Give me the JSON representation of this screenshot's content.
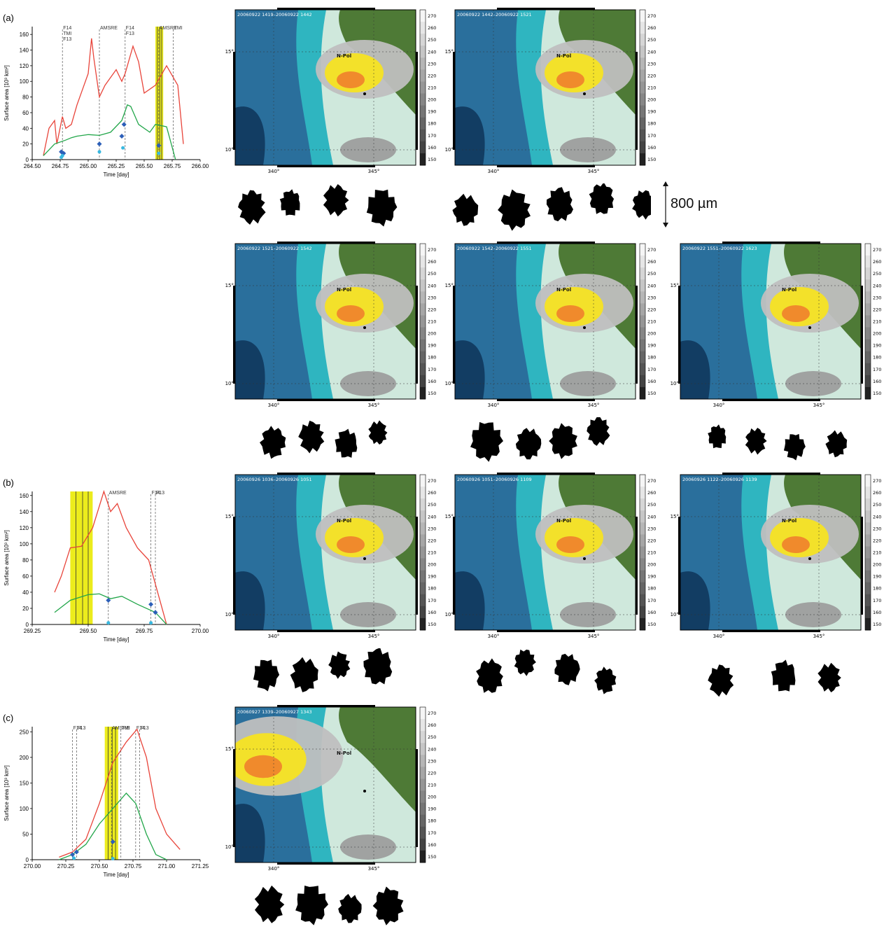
{
  "charts": [
    {
      "letter": "(a)",
      "ylabel": "Surface area [10³ km²]",
      "xlabel": "Time [day]",
      "xticks": [
        "264.50",
        "264.75",
        "265.00",
        "265.25",
        "265.50",
        "265.75",
        "266.00"
      ],
      "yticks": [
        "0",
        "20",
        "40",
        "60",
        "80",
        "100",
        "120",
        "140",
        "160"
      ],
      "xlim": [
        264.5,
        266.0
      ],
      "ylim": [
        0,
        170
      ],
      "highlight": [
        265.6,
        265.67
      ],
      "overpasses": [
        {
          "x": 264.77,
          "labels": [
            "F14",
            "TMI",
            "F13"
          ]
        },
        {
          "x": 265.1,
          "labels": [
            "AMSRE"
          ]
        },
        {
          "x": 265.33,
          "labels": [
            "F14",
            "F13"
          ]
        },
        {
          "x": 265.63,
          "labels": [
            "AMSRE"
          ]
        },
        {
          "x": 265.76,
          "labels": [
            "TMI"
          ]
        }
      ],
      "red": [
        [
          264.6,
          5
        ],
        [
          264.65,
          40
        ],
        [
          264.7,
          50
        ],
        [
          264.72,
          20
        ],
        [
          264.77,
          55
        ],
        [
          264.8,
          40
        ],
        [
          264.85,
          45
        ],
        [
          264.9,
          70
        ],
        [
          264.95,
          90
        ],
        [
          265.0,
          110
        ],
        [
          265.03,
          155
        ],
        [
          265.05,
          130
        ],
        [
          265.1,
          80
        ],
        [
          265.15,
          95
        ],
        [
          265.2,
          105
        ],
        [
          265.25,
          115
        ],
        [
          265.3,
          100
        ],
        [
          265.33,
          110
        ],
        [
          265.4,
          145
        ],
        [
          265.45,
          125
        ],
        [
          265.5,
          85
        ],
        [
          265.6,
          95
        ],
        [
          265.7,
          120
        ],
        [
          265.8,
          95
        ],
        [
          265.85,
          20
        ]
      ],
      "green": [
        [
          264.6,
          5
        ],
        [
          264.7,
          20
        ],
        [
          264.8,
          25
        ],
        [
          264.85,
          28
        ],
        [
          264.9,
          30
        ],
        [
          265.0,
          32
        ],
        [
          265.1,
          31
        ],
        [
          265.2,
          35
        ],
        [
          265.3,
          50
        ],
        [
          265.35,
          70
        ],
        [
          265.38,
          68
        ],
        [
          265.45,
          45
        ],
        [
          265.55,
          35
        ],
        [
          265.6,
          45
        ],
        [
          265.7,
          42
        ],
        [
          265.78,
          0
        ]
      ],
      "blue": [
        [
          264.76,
          10
        ],
        [
          264.78,
          8
        ],
        [
          265.1,
          20
        ],
        [
          265.3,
          30
        ],
        [
          265.32,
          45
        ],
        [
          265.63,
          18
        ]
      ],
      "cyan": [
        [
          264.76,
          3
        ],
        [
          264.77,
          5
        ],
        [
          265.1,
          10
        ],
        [
          265.31,
          15
        ],
        [
          265.63,
          8
        ]
      ]
    },
    {
      "letter": "(b)",
      "ylabel": "Surface area [10³ km²]",
      "xlabel": "Time [day]",
      "xticks": [
        "269.25",
        "269.50",
        "269.75",
        "270.00"
      ],
      "yticks": [
        "0",
        "20",
        "40",
        "60",
        "80",
        "100",
        "120",
        "140",
        "160"
      ],
      "xlim": [
        269.25,
        270.0
      ],
      "ylim": [
        0,
        165
      ],
      "highlight": [
        269.42,
        269.52
      ],
      "overpasses": [
        {
          "x": 269.59,
          "labels": [
            "AMSRE"
          ]
        },
        {
          "x": 269.78,
          "labels": [
            "F14"
          ]
        },
        {
          "x": 269.8,
          "labels": [
            "F13"
          ]
        }
      ],
      "red": [
        [
          269.35,
          40
        ],
        [
          269.38,
          60
        ],
        [
          269.42,
          95
        ],
        [
          269.47,
          97
        ],
        [
          269.52,
          120
        ],
        [
          269.57,
          165
        ],
        [
          269.6,
          140
        ],
        [
          269.63,
          150
        ],
        [
          269.67,
          120
        ],
        [
          269.72,
          95
        ],
        [
          269.77,
          80
        ],
        [
          269.82,
          30
        ],
        [
          269.85,
          0
        ]
      ],
      "green": [
        [
          269.35,
          15
        ],
        [
          269.42,
          30
        ],
        [
          269.5,
          37
        ],
        [
          269.55,
          38
        ],
        [
          269.6,
          32
        ],
        [
          269.65,
          35
        ],
        [
          269.72,
          25
        ],
        [
          269.8,
          15
        ],
        [
          269.85,
          0
        ]
      ],
      "blue": [
        [
          269.59,
          30
        ],
        [
          269.78,
          25
        ],
        [
          269.8,
          15
        ]
      ],
      "cyan": [
        [
          269.59,
          2
        ],
        [
          269.78,
          2
        ]
      ]
    },
    {
      "letter": "(c)",
      "ylabel": "Surface area [10³ km²]",
      "xlabel": "Time [day]",
      "xticks": [
        "270.00",
        "270.25",
        "270.50",
        "270.75",
        "271.00",
        "271.25"
      ],
      "yticks": [
        "0",
        "50",
        "100",
        "150",
        "200",
        "250"
      ],
      "xlim": [
        270.0,
        271.25
      ],
      "ylim": [
        0,
        260
      ],
      "highlight": [
        270.54,
        270.64
      ],
      "overpasses": [
        {
          "x": 270.3,
          "labels": [
            "F14"
          ]
        },
        {
          "x": 270.33,
          "labels": [
            "F13"
          ]
        },
        {
          "x": 270.59,
          "labels": [
            "AMSRE"
          ]
        },
        {
          "x": 270.66,
          "labels": [
            "TMI"
          ]
        },
        {
          "x": 270.77,
          "labels": [
            "F14"
          ]
        },
        {
          "x": 270.8,
          "labels": [
            "F13"
          ]
        }
      ],
      "red": [
        [
          270.2,
          5
        ],
        [
          270.3,
          15
        ],
        [
          270.4,
          40
        ],
        [
          270.5,
          110
        ],
        [
          270.6,
          190
        ],
        [
          270.7,
          230
        ],
        [
          270.78,
          255
        ],
        [
          270.85,
          200
        ],
        [
          270.92,
          100
        ],
        [
          271.0,
          50
        ],
        [
          271.1,
          20
        ]
      ],
      "green": [
        [
          270.2,
          0
        ],
        [
          270.3,
          10
        ],
        [
          270.4,
          30
        ],
        [
          270.5,
          70
        ],
        [
          270.6,
          100
        ],
        [
          270.7,
          130
        ],
        [
          270.77,
          110
        ],
        [
          270.85,
          50
        ],
        [
          270.92,
          10
        ],
        [
          271.0,
          0
        ]
      ],
      "blue": [
        [
          270.3,
          10
        ],
        [
          270.33,
          15
        ],
        [
          270.6,
          35
        ]
      ],
      "cyan": [
        [
          270.31,
          3
        ],
        [
          270.6,
          2
        ]
      ]
    }
  ],
  "maps": [
    {
      "title": "20060922 1419–20060922 1442"
    },
    {
      "title": "20060922 1442–20060922 1521"
    },
    {
      "title": "20060922 1521–20060922 1542"
    },
    {
      "title": "20060922 1542–20060922 1551"
    },
    {
      "title": "20060922 1551–20060922 1623"
    },
    {
      "title": "20060926 1036–20060926 1051"
    },
    {
      "title": "20060926 1051–20060926 1109"
    },
    {
      "title": "20060926 1122–20060926 1139"
    },
    {
      "title": "20060927 1339–20060927 1343"
    }
  ],
  "map_common": {
    "lat_labels": [
      "15°",
      "10°"
    ],
    "lon_labels": [
      "340°",
      "345°"
    ],
    "city": "N-Pol",
    "colorbar_ticks": [
      "270",
      "260",
      "250",
      "240",
      "230",
      "220",
      "210",
      "200",
      "190",
      "180",
      "170",
      "160",
      "150"
    ]
  },
  "scale_bar": {
    "label": "800 µm"
  },
  "colors": {
    "red": "#e8443a",
    "green": "#22a64a",
    "blue": "#2c5fb8",
    "cyan": "#38b8e0",
    "highlight": "#ecec1c",
    "sea_deep": "#2a6f9c",
    "sea_shallow": "#2fb5c0",
    "land": "#4e7a36",
    "cloud": "#bfbfbf",
    "cloud_core": "#f3e12a",
    "cloud_hot": "#f08a2c"
  }
}
